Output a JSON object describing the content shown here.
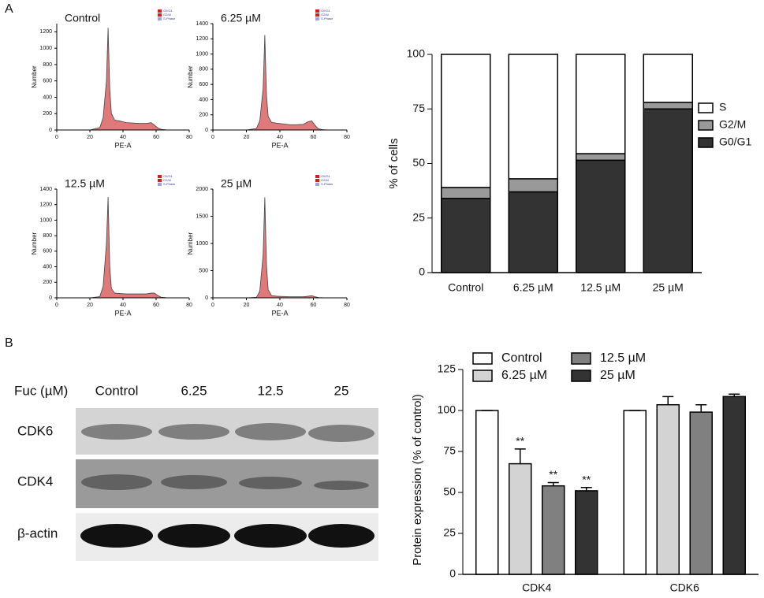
{
  "panels": [
    "A",
    "B"
  ],
  "blot": {
    "header": "Fuc (µM)",
    "lanes": [
      "Control",
      "6.25",
      "12.5",
      "25"
    ],
    "rows": [
      "CDK6",
      "CDK4",
      "β-actin"
    ]
  },
  "chart_data": [
    {
      "type": "histogram",
      "title": "Control",
      "xlabel": "PE-A",
      "ylabel": "Number",
      "legend": [
        "G0/G1",
        "G2/M",
        "S-Phase"
      ],
      "x": [
        20,
        26,
        28,
        30,
        31,
        32,
        33,
        35,
        38,
        42,
        46,
        50,
        54,
        57,
        59,
        61,
        63,
        66,
        70
      ],
      "values": [
        0,
        30,
        150,
        600,
        1250,
        500,
        200,
        120,
        110,
        90,
        85,
        80,
        80,
        90,
        60,
        25,
        8,
        2,
        0
      ],
      "color": "#e07a7a",
      "xlim": [
        0,
        80
      ],
      "xticks": [
        0,
        20,
        40,
        60,
        80
      ],
      "ylim": [
        0,
        1300
      ],
      "yticks": [
        0,
        200,
        400,
        600,
        800,
        1000,
        1200
      ]
    },
    {
      "type": "histogram",
      "title": "6.25 µM",
      "xlabel": "PE-A",
      "ylabel": "Number",
      "legend": [
        "G0/G1",
        "G2/M",
        "S-Phase"
      ],
      "x": [
        20,
        26,
        28,
        30,
        31,
        32,
        33,
        35,
        38,
        42,
        46,
        50,
        54,
        57,
        59,
        61,
        63,
        66,
        70
      ],
      "values": [
        0,
        20,
        120,
        550,
        1250,
        450,
        180,
        100,
        90,
        80,
        70,
        70,
        75,
        110,
        120,
        60,
        15,
        3,
        0
      ],
      "color": "#e07a7a",
      "xlim": [
        0,
        80
      ],
      "xticks": [
        0,
        20,
        40,
        60,
        80
      ],
      "ylim": [
        0,
        1400
      ],
      "yticks": [
        0,
        200,
        400,
        600,
        800,
        1000,
        1200,
        1400
      ]
    },
    {
      "type": "histogram",
      "title": "12.5 µM",
      "xlabel": "PE-A",
      "ylabel": "Number",
      "legend": [
        "G0/G1",
        "G2/M",
        "S-Phase"
      ],
      "x": [
        20,
        26,
        28,
        30,
        31,
        32,
        33,
        35,
        38,
        42,
        46,
        50,
        54,
        57,
        59,
        61,
        63,
        66,
        70
      ],
      "values": [
        0,
        15,
        150,
        700,
        1300,
        400,
        120,
        60,
        55,
        50,
        50,
        50,
        50,
        60,
        60,
        30,
        8,
        2,
        0
      ],
      "color": "#e07a7a",
      "xlim": [
        0,
        80
      ],
      "xticks": [
        0,
        20,
        40,
        60,
        80
      ],
      "ylim": [
        0,
        1400
      ],
      "yticks": [
        0,
        200,
        400,
        600,
        800,
        1000,
        1200,
        1400
      ]
    },
    {
      "type": "histogram",
      "title": "25 µM",
      "xlabel": "PE-A",
      "ylabel": "Number",
      "legend": [
        "G0/G1",
        "G2/M",
        "S-Phase"
      ],
      "x": [
        20,
        26,
        28,
        30,
        31,
        32,
        33,
        35,
        38,
        42,
        46,
        50,
        54,
        57,
        59,
        61,
        63,
        66,
        70
      ],
      "values": [
        0,
        10,
        120,
        800,
        1850,
        600,
        150,
        40,
        30,
        25,
        20,
        20,
        20,
        30,
        40,
        20,
        5,
        1,
        0
      ],
      "color": "#e07a7a",
      "xlim": [
        0,
        80
      ],
      "xticks": [
        0,
        20,
        40,
        60,
        80
      ],
      "ylim": [
        0,
        2000
      ],
      "yticks": [
        0,
        500,
        1000,
        1500,
        2000
      ]
    },
    {
      "type": "stacked_bar",
      "ylabel": "% of cells",
      "categories": [
        "Control",
        "6.25 µM",
        "12.5 µM",
        "25 µM"
      ],
      "series": [
        {
          "name": "G0/G1",
          "color": "#333333",
          "values": [
            34,
            37,
            51.5,
            75
          ]
        },
        {
          "name": "G2/M",
          "color": "#999999",
          "values": [
            5,
            6,
            3,
            3
          ]
        },
        {
          "name": "S",
          "color": "#ffffff",
          "values": [
            61,
            57,
            45.5,
            22
          ]
        }
      ],
      "ylim": [
        0,
        100
      ],
      "yticks": [
        0,
        25,
        50,
        75,
        100
      ],
      "legend": "right"
    },
    {
      "type": "grouped_bar",
      "ylabel": "Protein expression (% of control)",
      "categories": [
        "CDK4",
        "CDK6"
      ],
      "series": [
        {
          "name": "Control",
          "color": "#ffffff",
          "values": [
            100,
            100
          ],
          "errors": [
            0,
            0
          ]
        },
        {
          "name": "6.25 µM",
          "color": "#d3d3d3",
          "values": [
            67.5,
            103.5
          ],
          "errors": [
            9,
            5
          ],
          "labels": [
            "**",
            null
          ]
        },
        {
          "name": "12.5 µM",
          "color": "#808080",
          "values": [
            54,
            99
          ],
          "errors": [
            2,
            4.5
          ],
          "labels": [
            "**",
            null
          ]
        },
        {
          "name": "25 µM",
          "color": "#333333",
          "values": [
            51,
            108.5
          ],
          "errors": [
            2,
            1.5
          ],
          "labels": [
            "**",
            null
          ]
        }
      ],
      "ylim": [
        0,
        125
      ],
      "yticks": [
        0,
        25,
        50,
        75,
        100,
        125
      ],
      "legend": "top"
    }
  ]
}
